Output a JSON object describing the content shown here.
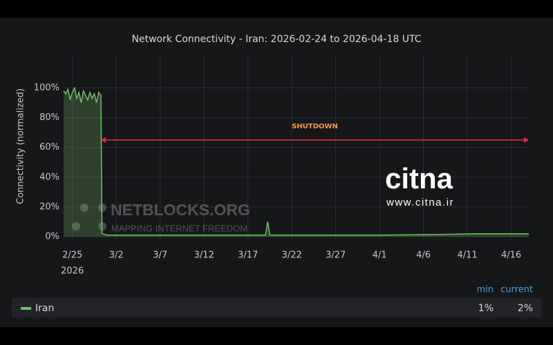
{
  "chart_data": {
    "type": "line",
    "title": "Network Connectivity - Iran: 2026-02-24 to 2026-04-18 UTC",
    "ylabel": "Connectivity (normalized)",
    "x": [
      "2026-02-24T00:00Z",
      "2026-02-24T06:00Z",
      "2026-02-24T12:00Z",
      "2026-02-24T18:00Z",
      "2026-02-25T00:00Z",
      "2026-02-25T06:00Z",
      "2026-02-25T12:00Z",
      "2026-02-25T18:00Z",
      "2026-02-26T00:00Z",
      "2026-02-26T06:00Z",
      "2026-02-26T12:00Z",
      "2026-02-26T18:00Z",
      "2026-02-27T00:00Z",
      "2026-02-27T06:00Z",
      "2026-02-27T12:00Z",
      "2026-02-27T18:00Z",
      "2026-02-28T00:00Z",
      "2026-02-28T06:00Z",
      "2026-02-28T09:00Z",
      "2026-03-01T00:00Z",
      "2026-03-05T00:00Z",
      "2026-03-10T00:00Z",
      "2026-03-15T00:00Z",
      "2026-03-19T00:00Z",
      "2026-03-19T06:00Z",
      "2026-03-19T12:00Z",
      "2026-03-25T00:00Z",
      "2026-04-01T00:00Z",
      "2026-04-08T00:00Z",
      "2026-04-12T00:00Z",
      "2026-04-18T00:00Z"
    ],
    "series": [
      {
        "name": "Iran",
        "color": "#73bf69",
        "values": [
          98,
          96,
          99,
          92,
          97,
          100,
          93,
          97,
          90,
          98,
          95,
          92,
          97,
          93,
          96,
          90,
          97,
          95,
          2,
          1,
          1,
          1,
          1,
          1,
          10,
          1,
          1,
          1,
          1.5,
          2,
          2
        ]
      }
    ],
    "xlim": [
      "2026-02-24T00:00Z",
      "2026-04-18T00:00Z"
    ],
    "xticks": [
      {
        "value": "2026-02-25T00:00Z",
        "label": "2/25"
      },
      {
        "value": "2026-03-02T00:00Z",
        "label": "3/2"
      },
      {
        "value": "2026-03-07T00:00Z",
        "label": "3/7"
      },
      {
        "value": "2026-03-12T00:00Z",
        "label": "3/12"
      },
      {
        "value": "2026-03-17T00:00Z",
        "label": "3/17"
      },
      {
        "value": "2026-03-22T00:00Z",
        "label": "3/22"
      },
      {
        "value": "2026-03-27T00:00Z",
        "label": "3/27"
      },
      {
        "value": "2026-04-01T00:00Z",
        "label": "4/1"
      },
      {
        "value": "2026-04-06T00:00Z",
        "label": "4/6"
      },
      {
        "value": "2026-04-11T00:00Z",
        "label": "4/11"
      },
      {
        "value": "2026-04-16T00:00Z",
        "label": "4/16"
      }
    ],
    "xtick_year": "2026",
    "ylim": [
      0,
      122
    ],
    "yticks": [
      {
        "value": 0,
        "label": "0%"
      },
      {
        "value": 20,
        "label": "20%"
      },
      {
        "value": 40,
        "label": "40%"
      },
      {
        "value": 60,
        "label": "60%"
      },
      {
        "value": 80,
        "label": "80%"
      },
      {
        "value": 100,
        "label": "100%"
      }
    ],
    "grid": true,
    "annotation": {
      "text": "SHUTDOWN",
      "color": "#e02f44",
      "x_start": "2026-02-28T06:00Z",
      "x_end": "2026-04-18T00:00Z",
      "y": 65
    },
    "legend_stats": {
      "headers": [
        "min",
        "current"
      ],
      "values": [
        1,
        2
      ],
      "value_labels": [
        "1%",
        "2%"
      ]
    },
    "watermarks": {
      "netblocks": "NETBLOCKS.ORG",
      "netblocks_tagline": "MAPPING INTERNET FREEDOM",
      "citna": "citna",
      "citna_url": "www.citna.ir"
    }
  }
}
